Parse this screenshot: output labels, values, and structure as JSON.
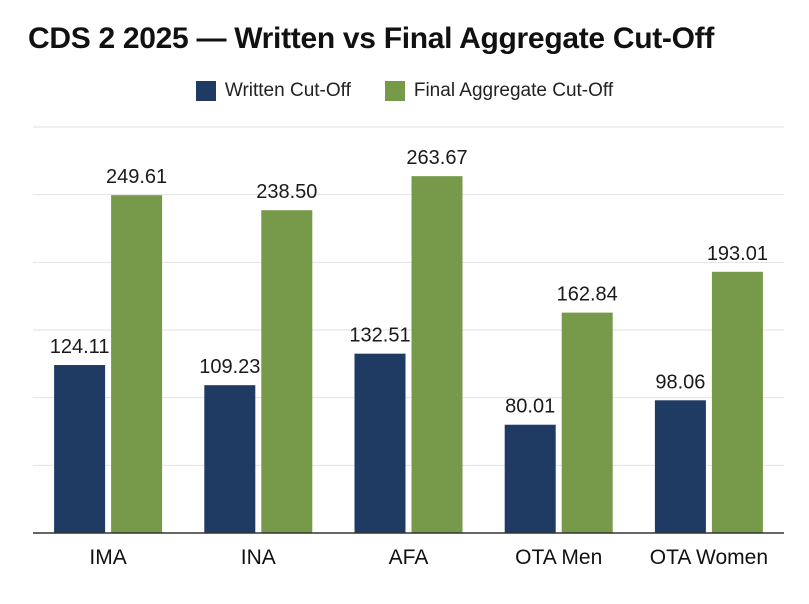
{
  "chart_data": {
    "type": "bar",
    "title": "CDS 2 2025 — Written vs Final Aggregate Cut-Off",
    "categories": [
      "IMA",
      "INA",
      "AFA",
      "OTA Men",
      "OTA Women"
    ],
    "series": [
      {
        "name": "Written Cut-Off",
        "color": "#1f3b63",
        "values": [
          124.11,
          109.23,
          132.51,
          80.01,
          98.06
        ]
      },
      {
        "name": "Final Aggregate Cut-Off",
        "color": "#76994a",
        "values": [
          249.61,
          238.5,
          263.67,
          162.84,
          193.01
        ]
      }
    ],
    "ylim": [
      0,
      300
    ],
    "grid": true,
    "legend_position": "top-center",
    "value_labels": [
      "124.11",
      "109.23",
      "132.51",
      "80.01",
      "98.06",
      "249.61",
      "238.50",
      "263.67",
      "162.84",
      "193.01"
    ]
  }
}
